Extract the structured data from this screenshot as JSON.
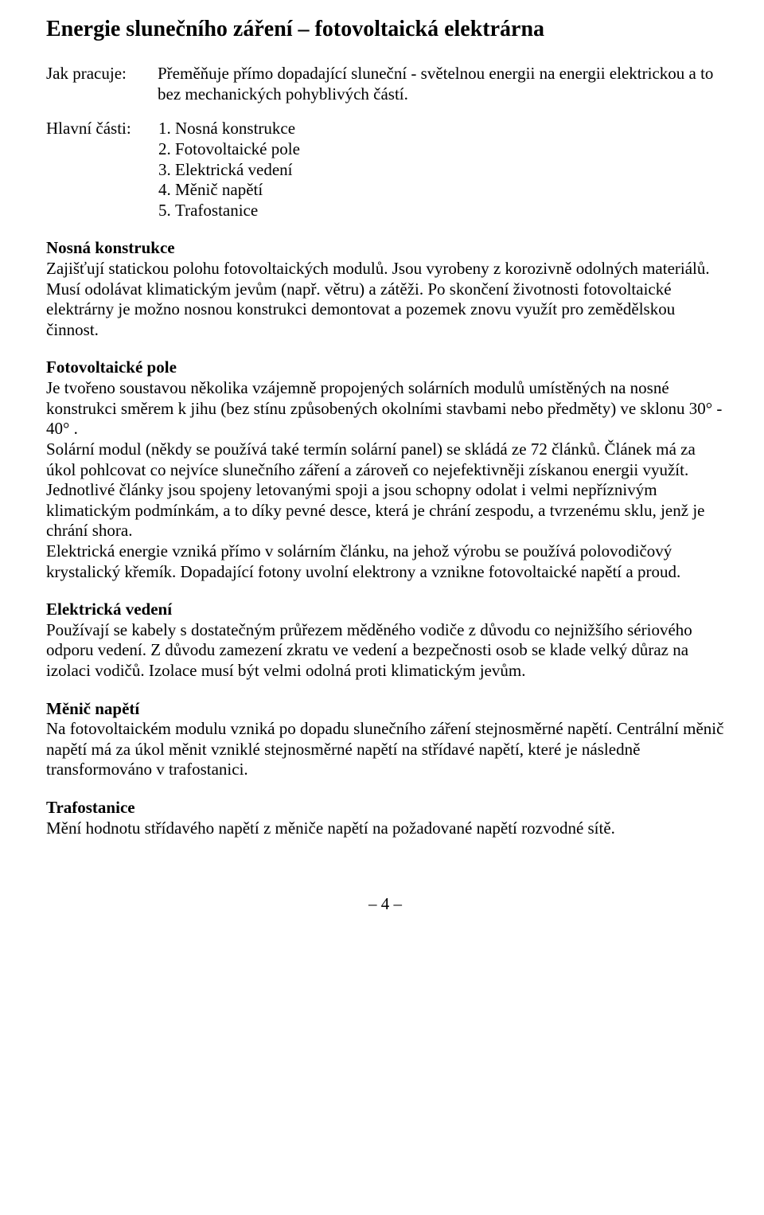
{
  "title": "Energie slunečního záření – fotovoltaická elektrárna",
  "howWorks": {
    "label": "Jak pracuje:",
    "text": "Přeměňuje přímo dopadající sluneční - světelnou energii na energii elektrickou a to bez mechanických pohyblivých částí."
  },
  "mainParts": {
    "label": "Hlavní části:",
    "items": [
      "Nosná konstrukce",
      "Fotovoltaické pole",
      "Elektrická vedení",
      "Měnič napětí",
      "Trafostanice"
    ]
  },
  "sections": {
    "nosna": {
      "head": "Nosná konstrukce",
      "body": "Zajišťují statickou polohu fotovoltaických modulů. Jsou vyrobeny z korozivně odolných materiálů. Musí odolávat klimatickým jevům (např. větru) a zátěži. Po skončení životnosti fotovoltaické elektrárny je možno nosnou konstrukci demontovat a pozemek znovu využít pro zemědělskou činnost."
    },
    "pole": {
      "head": "Fotovoltaické pole",
      "p1": "Je tvořeno soustavou několika vzájemně propojených solárních modulů umístěných na nosné konstrukci směrem k jihu (bez stínu způsobených okolními stavbami nebo předměty) ve sklonu 30° - 40° .",
      "p2": " Solární modul (někdy se používá také termín solární panel) se skládá ze 72 článků. Článek má za úkol pohlcovat co nejvíce slunečního záření a zároveň co nejefektivněji získanou energii využít. Jednotlivé články jsou spojeny letovanými spoji a jsou schopny odolat i velmi nepříznivým klimatickým podmínkám, a to díky pevné desce, která je chrání zespodu, a tvrzenému sklu, jenž je chrání shora.",
      "p3": "Elektrická energie vzniká přímo v solárním článku, na jehož výrobu se používá polovodičový krystalický křemík. Dopadající fotony uvolní elektrony a vznikne fotovoltaické napětí a proud."
    },
    "vedeni": {
      "head": "Elektrická vedení",
      "body": "Používají se kabely s dostatečným průřezem měděného vodiče z důvodu co nejnižšího sériového odporu vedení. Z důvodu zamezení zkratu ve vedení a bezpečnosti osob se klade velký důraz na izolaci vodičů. Izolace musí být velmi odolná proti klimatickým jevům."
    },
    "menic": {
      "head": "Měnič napětí",
      "body": "Na fotovoltaickém modulu vzniká po dopadu slunečního záření stejnosměrné napětí. Centrální měnič napětí má za úkol měnit vzniklé stejnosměrné napětí na střídavé napětí, které je následně transformováno v trafostanici."
    },
    "trafo": {
      "head": "Trafostanice",
      "body": " Mění hodnotu střídavého napětí z měniče napětí na požadované napětí rozvodné sítě."
    }
  },
  "pageNumber": "– 4 –"
}
